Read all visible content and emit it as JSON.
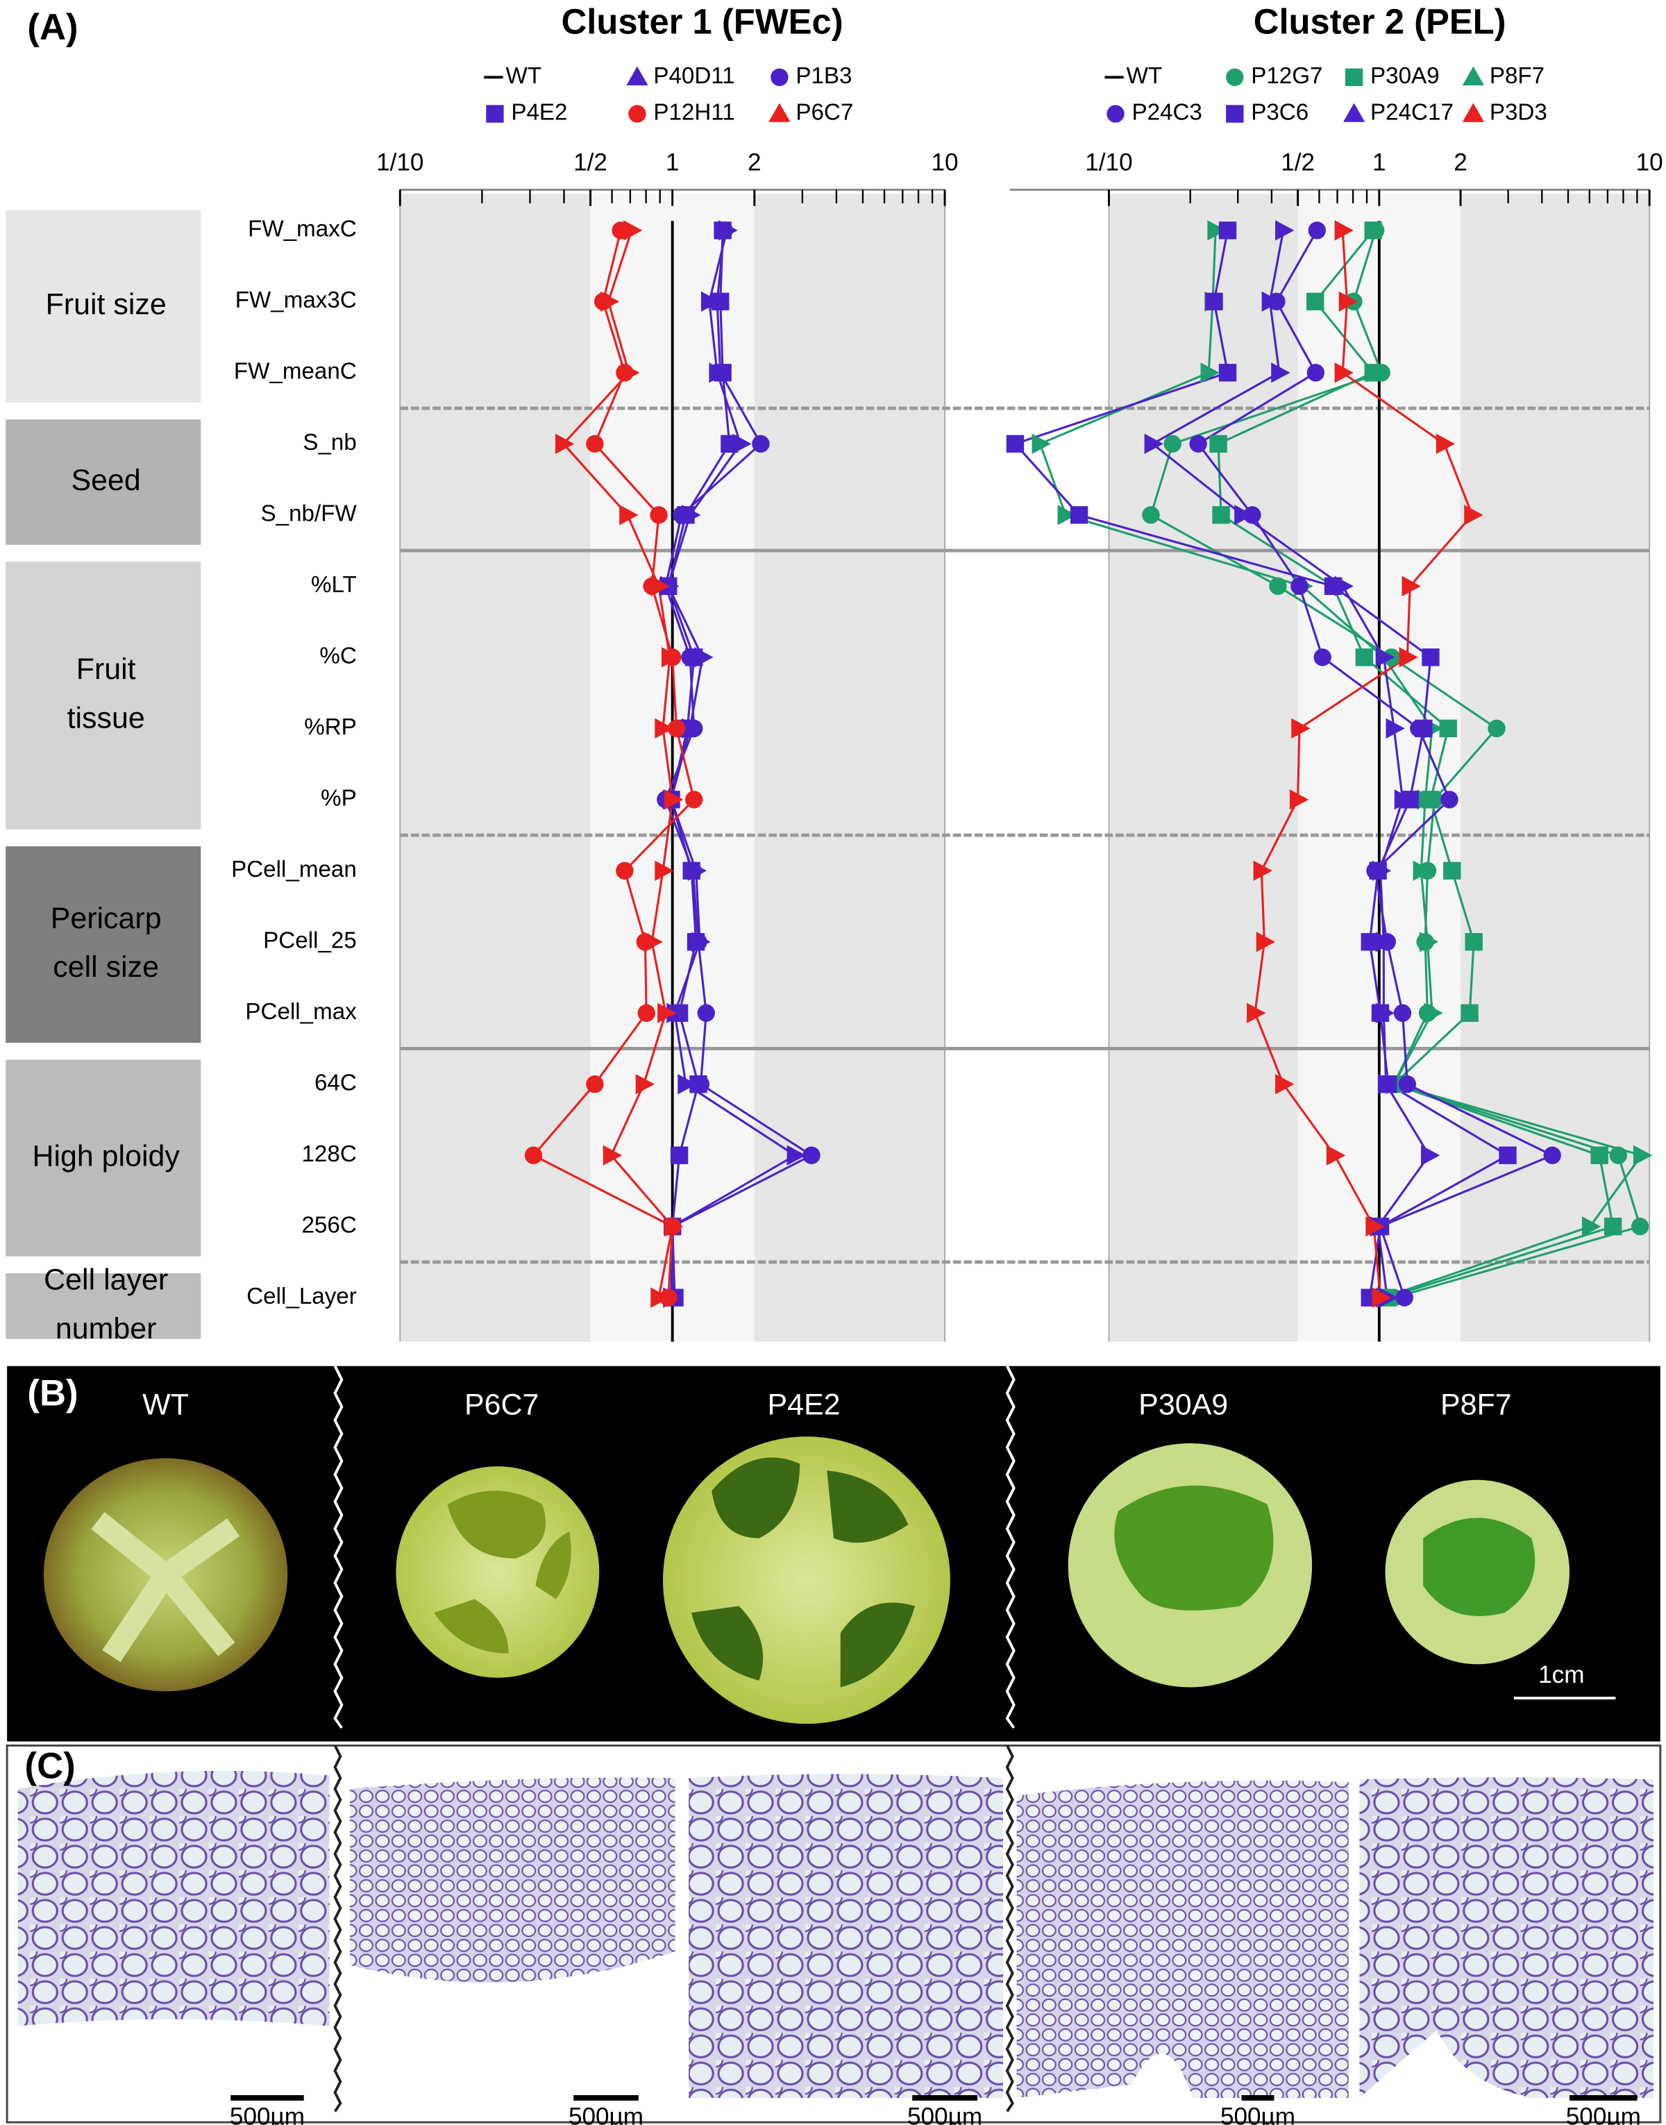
{
  "panel_a_label": "(A)",
  "chart_data": [
    {
      "type": "dot-line",
      "title": "Cluster 1 (FWEc)",
      "log_x": true,
      "xlim": [
        0.1,
        10
      ],
      "xticks": [
        {
          "value": 0.1,
          "label": "1/10"
        },
        {
          "value": 0.5,
          "label": "1/2"
        },
        1,
        2,
        10
      ],
      "xminor_ticks": [
        0.2,
        0.3,
        0.4,
        0.6,
        0.7,
        0.8,
        0.9,
        3,
        4,
        5,
        6,
        7,
        8,
        9
      ],
      "groups": [
        {
          "label": [
            "Fruit size"
          ],
          "color": "#e6e6e6",
          "categories": [
            "FW_maxC",
            "FW_max3C",
            "FW_meanC"
          ]
        },
        {
          "label": [
            "Seed"
          ],
          "color": "#b3b3b3",
          "categories": [
            "S_nb",
            "S_nb/FW"
          ]
        },
        {
          "label": [
            "Fruit",
            "tissue"
          ],
          "color": "#d3d3d3",
          "categories": [
            "%LT",
            "%C",
            "%RP",
            "%P"
          ]
        },
        {
          "label": [
            "Pericarp",
            "cell size"
          ],
          "color": "#7f7f7f",
          "categories": [
            "PCell_mean",
            "PCell_25",
            "PCell_max"
          ]
        },
        {
          "label": [
            "High ploidy"
          ],
          "color": "#bbbbbb",
          "categories": [
            "64C",
            "128C",
            "256C"
          ]
        },
        {
          "label": [
            "Cell layer",
            "number"
          ],
          "color": "#bdbdbd",
          "categories": [
            "Cell_Layer"
          ]
        }
      ],
      "reference": {
        "name": "WT",
        "color": "#000000",
        "value": 1
      },
      "series": [
        {
          "name": "P40D11",
          "color": "#4b22c8",
          "marker": "triangle",
          "values": [
            1.585,
            1.365,
            1.46,
            1.78,
            1.16,
            0.966,
            1.29,
            1.16,
            0.99,
            1.22,
            1.26,
            1.02,
            1.12,
            2.82,
            1.0,
            0.99
          ]
        },
        {
          "name": "P1B3",
          "color": "#4b22c8",
          "marker": "circle",
          "values": [
            1.55,
            1.46,
            1.5,
            2.11,
            1.08,
            0.944,
            1.16,
            1.2,
            0.944,
            1.19,
            1.245,
            1.33,
            1.27,
            3.24,
            1.0,
            1.0
          ]
        },
        {
          "name": "P4E2",
          "color": "#4b22c8",
          "marker": "square",
          "values": [
            1.53,
            1.5,
            1.53,
            1.62,
            1.12,
            0.966,
            1.2,
            1.135,
            0.99,
            1.175,
            1.22,
            1.06,
            1.245,
            1.06,
            1.0,
            1.02
          ]
        },
        {
          "name": "P12H11",
          "color": "#e8201f",
          "marker": "circle",
          "values": [
            0.646,
            0.556,
            0.668,
            0.519,
            0.891,
            0.841,
            1.0,
            1.035,
            1.2,
            0.668,
            0.794,
            0.803,
            0.519,
            0.309,
            1.0,
            0.966
          ]
        },
        {
          "name": "P6C7",
          "color": "#e8201f",
          "marker": "triangle",
          "values": [
            0.708,
            0.582,
            0.692,
            0.398,
            0.684,
            0.891,
            0.977,
            0.923,
            1.0,
            0.923,
            0.841,
            0.944,
            0.785,
            0.596,
            1.0,
            0.891
          ]
        }
      ]
    },
    {
      "type": "dot-line",
      "title": "Cluster 2 (PEL)",
      "log_x": true,
      "xlim": [
        0.043,
        10
      ],
      "xticks": [
        {
          "value": 0.1,
          "label": "1/10"
        },
        {
          "value": 0.5,
          "label": "1/2"
        },
        1,
        2,
        10
      ],
      "xminor_ticks": [
        0.2,
        0.3,
        0.4,
        0.6,
        0.7,
        0.8,
        0.9,
        3,
        4,
        5,
        6,
        7,
        8,
        9
      ],
      "reference": {
        "name": "WT",
        "color": "#000000",
        "value": 1
      },
      "series": [
        {
          "name": "P12G7",
          "color": "#1f9e6e",
          "marker": "circle",
          "values": [
            0.97,
            0.804,
            1.02,
            0.172,
            0.143,
            0.422,
            1.11,
            2.72,
            1.6,
            1.51,
            1.48,
            1.51,
            1.135,
            7.67,
            9.23,
            1.135
          ]
        },
        {
          "name": "P30A9",
          "color": "#1f9e6e",
          "marker": "square",
          "values": [
            0.95,
            0.58,
            0.95,
            0.254,
            0.26,
            0.676,
            0.881,
            1.8,
            1.55,
            1.86,
            2.24,
            2.16,
            1.135,
            6.53,
            7.33,
            1.07
          ]
        },
        {
          "name": "P8F7",
          "color": "#1f9e6e",
          "marker": "triangle",
          "values": [
            0.248,
            0.242,
            0.234,
            0.0556,
            0.0692,
            0.519,
            1.04,
            1.57,
            1.48,
            1.43,
            1.51,
            1.57,
            1.135,
            9.34,
            6.03,
            1.04
          ]
        },
        {
          "name": "P24C3",
          "color": "#4b22c8",
          "marker": "circle",
          "values": [
            0.589,
            0.417,
            0.582,
            0.214,
            0.339,
            0.507,
            0.617,
            1.4,
            1.82,
            0.966,
            1.07,
            1.22,
            1.27,
            4.37,
            1.01,
            1.24
          ]
        },
        {
          "name": "P3C6",
          "color": "#4b22c8",
          "marker": "square",
          "values": [
            0.275,
            0.245,
            0.275,
            0.045,
            0.0776,
            0.676,
            1.55,
            1.46,
            1.3,
            0.99,
            0.923,
            1.01,
            1.08,
            2.99,
            1.01,
            0.923
          ]
        },
        {
          "name": "P24C17",
          "color": "#4b22c8",
          "marker": "triangle",
          "values": [
            0.442,
            0.394,
            0.427,
            0.145,
            0.312,
            0.733,
            1.04,
            1.135,
            1.22,
            1.01,
            1.04,
            1.04,
            1.06,
            1.53,
            0.99,
            1.07
          ]
        },
        {
          "name": "P3D3",
          "color": "#e8201f",
          "marker": "triangle",
          "values": [
            0.733,
            0.76,
            0.733,
            1.74,
            2.21,
            1.3,
            1.27,
            0.507,
            0.5,
            0.367,
            0.376,
            0.347,
            0.442,
            0.684,
            0.955,
            1.01
          ]
        }
      ]
    }
  ],
  "panel_b": {
    "label": "(B)",
    "samples": [
      "WT",
      "P6C7",
      "P4E2",
      "P30A9",
      "P8F7"
    ],
    "scale_bar": "1cm"
  },
  "panel_c": {
    "label": "(C)",
    "scale_bars": [
      "500µm",
      "500µm",
      "500µm",
      "500µm",
      "500µm"
    ]
  }
}
